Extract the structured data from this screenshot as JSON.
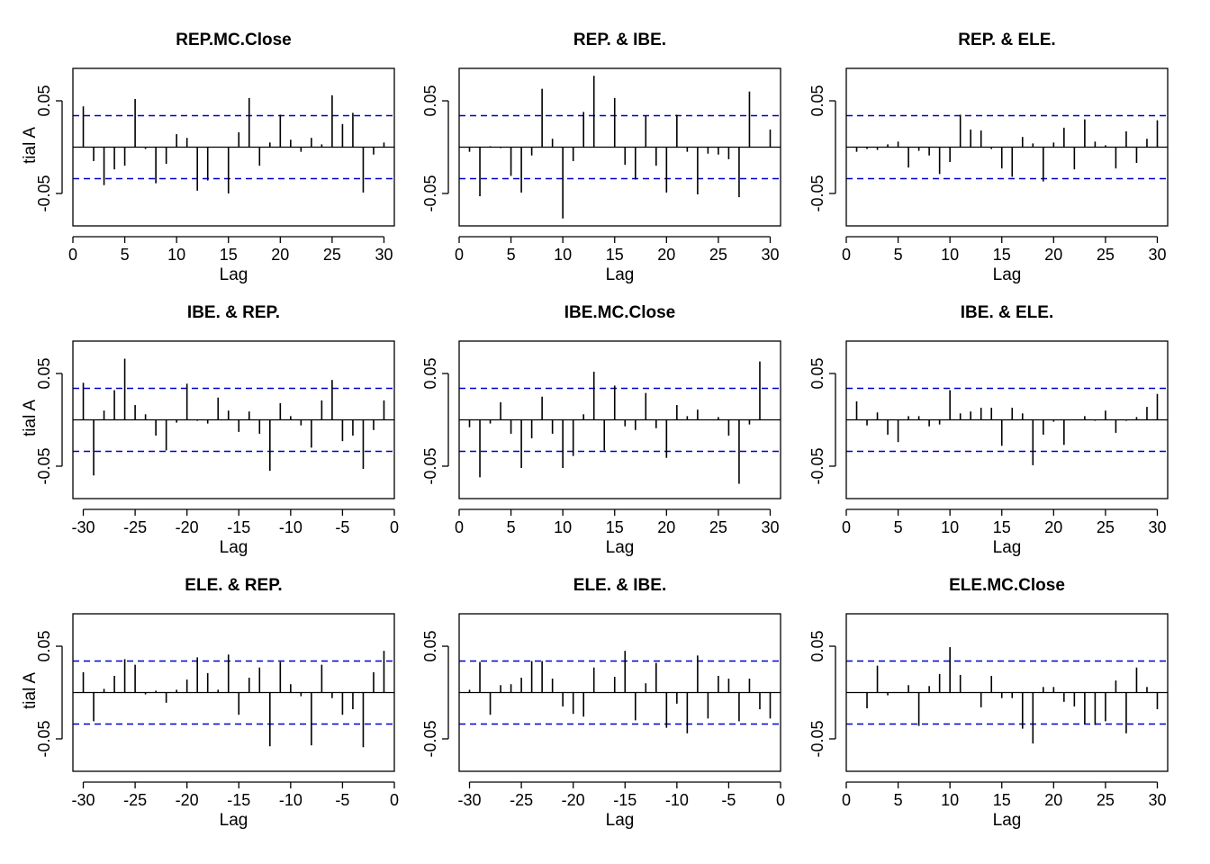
{
  "chart_data": [
    {
      "type": "bar",
      "title": "REP.MC.Close",
      "xlabel": "Lag",
      "ylabel": "Partial ACF",
      "xlim": [
        0,
        31
      ],
      "ylim": [
        -0.085,
        0.085
      ],
      "x_ticks": [
        0,
        5,
        10,
        15,
        20,
        25,
        30
      ],
      "y_ticks": [
        -0.05,
        0.05
      ],
      "y_tick_labels": [
        "-0.05",
        "0.05"
      ],
      "ci": 0.034,
      "bar_color": "#000000",
      "ci_color": "#0000CC",
      "x": [
        1,
        2,
        3,
        4,
        5,
        6,
        7,
        8,
        9,
        10,
        11,
        12,
        13,
        14,
        15,
        16,
        17,
        18,
        19,
        20,
        21,
        22,
        23,
        24,
        25,
        26,
        27,
        28,
        29,
        30
      ],
      "values": [
        0.044,
        -0.015,
        -0.041,
        -0.024,
        -0.02,
        0.052,
        -0.002,
        -0.039,
        -0.018,
        0.014,
        0.01,
        -0.047,
        -0.036,
        0.0,
        -0.05,
        0.016,
        0.053,
        -0.02,
        0.005,
        0.035,
        0.008,
        -0.005,
        0.01,
        0.003,
        0.056,
        0.025,
        0.037,
        -0.049,
        -0.008,
        0.005
      ]
    },
    {
      "type": "bar",
      "title": "REP. & IBE.",
      "xlabel": "Lag",
      "ylabel": "",
      "xlim": [
        0,
        31
      ],
      "ylim": [
        -0.085,
        0.085
      ],
      "x_ticks": [
        0,
        5,
        10,
        15,
        20,
        25,
        30
      ],
      "y_ticks": [
        -0.05,
        0.05
      ],
      "y_tick_labels": [
        "-0.05",
        "0.05"
      ],
      "ci": 0.034,
      "bar_color": "#000000",
      "ci_color": "#0000CC",
      "x": [
        1,
        2,
        3,
        4,
        5,
        6,
        7,
        8,
        9,
        10,
        11,
        12,
        13,
        14,
        15,
        16,
        17,
        18,
        19,
        20,
        21,
        22,
        23,
        24,
        25,
        26,
        27,
        28,
        29,
        30
      ],
      "values": [
        -0.005,
        -0.053,
        0.001,
        -0.001,
        -0.031,
        -0.049,
        -0.009,
        0.063,
        0.009,
        -0.077,
        -0.015,
        0.038,
        0.077,
        0.0,
        0.053,
        -0.019,
        -0.035,
        0.034,
        -0.02,
        -0.049,
        0.035,
        -0.005,
        -0.051,
        -0.007,
        -0.008,
        -0.013,
        -0.054,
        0.06,
        0.0,
        0.019
      ]
    },
    {
      "type": "bar",
      "title": "REP. & ELE.",
      "xlabel": "Lag",
      "ylabel": "",
      "xlim": [
        0,
        31
      ],
      "ylim": [
        -0.085,
        0.085
      ],
      "x_ticks": [
        0,
        5,
        10,
        15,
        20,
        25,
        30
      ],
      "y_ticks": [
        -0.05,
        0.05
      ],
      "y_tick_labels": [
        "-0.05",
        "0.05"
      ],
      "ci": 0.034,
      "bar_color": "#000000",
      "ci_color": "#0000CC",
      "x": [
        1,
        2,
        3,
        4,
        5,
        6,
        7,
        8,
        9,
        10,
        11,
        12,
        13,
        14,
        15,
        16,
        17,
        18,
        19,
        20,
        21,
        22,
        23,
        24,
        25,
        26,
        27,
        28,
        29,
        30
      ],
      "values": [
        -0.005,
        -0.002,
        -0.003,
        0.003,
        0.006,
        -0.022,
        -0.004,
        -0.009,
        -0.029,
        -0.016,
        0.035,
        0.019,
        0.018,
        -0.002,
        -0.023,
        -0.032,
        0.011,
        0.004,
        -0.037,
        0.005,
        0.021,
        -0.024,
        0.03,
        0.006,
        0.002,
        -0.023,
        0.017,
        -0.017,
        0.009,
        0.029
      ]
    },
    {
      "type": "bar",
      "title": "IBE. & REP.",
      "xlabel": "Lag",
      "ylabel": "Partial ACF",
      "xlim": [
        -31,
        0
      ],
      "ylim": [
        -0.085,
        0.085
      ],
      "x_ticks": [
        -30,
        -25,
        -20,
        -15,
        -10,
        -5,
        0
      ],
      "y_ticks": [
        -0.05,
        0.05
      ],
      "y_tick_labels": [
        "-0.05",
        "0.05"
      ],
      "ci": 0.034,
      "bar_color": "#000000",
      "ci_color": "#0000CC",
      "x": [
        -30,
        -29,
        -28,
        -27,
        -26,
        -25,
        -24,
        -23,
        -22,
        -21,
        -20,
        -19,
        -18,
        -17,
        -16,
        -15,
        -14,
        -13,
        -12,
        -11,
        -10,
        -9,
        -8,
        -7,
        -6,
        -5,
        -4,
        -3,
        -2,
        -1
      ],
      "values": [
        0.04,
        -0.06,
        0.01,
        0.032,
        0.066,
        0.016,
        0.006,
        -0.017,
        -0.033,
        -0.003,
        0.039,
        -0.001,
        -0.004,
        0.024,
        0.01,
        -0.013,
        0.009,
        -0.015,
        -0.055,
        0.018,
        0.004,
        -0.006,
        -0.03,
        0.021,
        0.043,
        -0.023,
        -0.017,
        -0.053,
        -0.011,
        0.021
      ]
    },
    {
      "type": "bar",
      "title": "IBE.MC.Close",
      "xlabel": "Lag",
      "ylabel": "",
      "xlim": [
        0,
        31
      ],
      "ylim": [
        -0.085,
        0.085
      ],
      "x_ticks": [
        0,
        5,
        10,
        15,
        20,
        25,
        30
      ],
      "y_ticks": [
        -0.05,
        0.05
      ],
      "y_tick_labels": [
        "-0.05",
        "0.05"
      ],
      "ci": 0.034,
      "bar_color": "#000000",
      "ci_color": "#0000CC",
      "x": [
        1,
        2,
        3,
        4,
        5,
        6,
        7,
        8,
        9,
        10,
        11,
        12,
        13,
        14,
        15,
        16,
        17,
        18,
        19,
        20,
        21,
        22,
        23,
        24,
        25,
        26,
        27,
        28,
        29,
        30
      ],
      "values": [
        -0.008,
        -0.062,
        -0.004,
        0.019,
        -0.015,
        -0.052,
        -0.02,
        0.025,
        -0.015,
        -0.052,
        -0.039,
        0.006,
        0.052,
        -0.033,
        0.037,
        -0.007,
        -0.011,
        0.029,
        -0.009,
        -0.041,
        0.016,
        0.004,
        0.011,
        0.0,
        0.003,
        -0.017,
        -0.069,
        -0.005,
        0.063,
        0.0
      ]
    },
    {
      "type": "bar",
      "title": "IBE. & ELE.",
      "xlabel": "Lag",
      "ylabel": "",
      "xlim": [
        0,
        31
      ],
      "ylim": [
        -0.085,
        0.085
      ],
      "x_ticks": [
        0,
        5,
        10,
        15,
        20,
        25,
        30
      ],
      "y_ticks": [
        -0.05,
        0.05
      ],
      "y_tick_labels": [
        "-0.05",
        "0.05"
      ],
      "ci": 0.034,
      "bar_color": "#000000",
      "ci_color": "#0000CC",
      "x": [
        1,
        2,
        3,
        4,
        5,
        6,
        7,
        8,
        9,
        10,
        11,
        12,
        13,
        14,
        15,
        16,
        17,
        18,
        19,
        20,
        21,
        22,
        23,
        24,
        25,
        26,
        27,
        28,
        29,
        30
      ],
      "values": [
        0.02,
        -0.006,
        0.008,
        -0.016,
        -0.024,
        0.004,
        0.004,
        -0.007,
        -0.005,
        0.032,
        0.007,
        0.009,
        0.013,
        0.013,
        -0.028,
        0.013,
        0.007,
        -0.049,
        -0.016,
        -0.002,
        -0.027,
        0.0,
        0.004,
        -0.001,
        0.01,
        -0.014,
        -0.001,
        0.003,
        0.014,
        0.028
      ]
    },
    {
      "type": "bar",
      "title": "ELE. & REP.",
      "xlabel": "Lag",
      "ylabel": "Partial ACF",
      "xlim": [
        -31,
        0
      ],
      "ylim": [
        -0.085,
        0.085
      ],
      "x_ticks": [
        -30,
        -25,
        -20,
        -15,
        -10,
        -5,
        0
      ],
      "y_ticks": [
        -0.05,
        0.05
      ],
      "y_tick_labels": [
        "-0.05",
        "0.05"
      ],
      "ci": 0.034,
      "bar_color": "#000000",
      "ci_color": "#0000CC",
      "x": [
        -30,
        -29,
        -28,
        -27,
        -26,
        -25,
        -24,
        -23,
        -22,
        -21,
        -20,
        -19,
        -18,
        -17,
        -16,
        -15,
        -14,
        -13,
        -12,
        -11,
        -10,
        -9,
        -8,
        -7,
        -6,
        -5,
        -4,
        -3,
        -2,
        -1
      ],
      "values": [
        0.022,
        -0.031,
        0.004,
        0.018,
        0.036,
        0.03,
        -0.002,
        0.002,
        -0.011,
        0.003,
        0.014,
        0.038,
        0.021,
        0.003,
        0.041,
        -0.024,
        0.016,
        0.027,
        -0.058,
        0.033,
        0.009,
        -0.004,
        -0.057,
        0.03,
        -0.006,
        -0.024,
        -0.018,
        -0.059,
        0.022,
        0.045
      ]
    },
    {
      "type": "bar",
      "title": "ELE. & IBE.",
      "xlabel": "Lag",
      "ylabel": "",
      "xlim": [
        -31,
        0
      ],
      "ylim": [
        -0.085,
        0.085
      ],
      "x_ticks": [
        -30,
        -25,
        -20,
        -15,
        -10,
        -5,
        0
      ],
      "y_ticks": [
        -0.05,
        0.05
      ],
      "y_tick_labels": [
        "-0.05",
        "0.05"
      ],
      "ci": 0.034,
      "bar_color": "#000000",
      "ci_color": "#0000CC",
      "x": [
        -30,
        -29,
        -28,
        -27,
        -26,
        -25,
        -24,
        -23,
        -22,
        -21,
        -20,
        -19,
        -18,
        -17,
        -16,
        -15,
        -14,
        -13,
        -12,
        -11,
        -10,
        -9,
        -8,
        -7,
        -6,
        -5,
        -4,
        -3,
        -2,
        -1
      ],
      "values": [
        0.003,
        0.033,
        -0.024,
        0.008,
        0.009,
        0.016,
        0.034,
        0.034,
        0.015,
        -0.015,
        -0.023,
        -0.026,
        0.027,
        0.0,
        0.017,
        0.045,
        -0.03,
        0.01,
        0.032,
        -0.038,
        -0.012,
        -0.044,
        0.04,
        -0.028,
        0.018,
        0.015,
        -0.031,
        0.015,
        -0.018,
        -0.028
      ]
    },
    {
      "type": "bar",
      "title": "ELE.MC.Close",
      "xlabel": "Lag",
      "ylabel": "",
      "xlim": [
        0,
        31
      ],
      "ylim": [
        -0.085,
        0.085
      ],
      "x_ticks": [
        0,
        5,
        10,
        15,
        20,
        25,
        30
      ],
      "y_ticks": [
        -0.05,
        0.05
      ],
      "y_tick_labels": [
        "-0.05",
        "0.05"
      ],
      "ci": 0.034,
      "bar_color": "#000000",
      "ci_color": "#0000CC",
      "x": [
        1,
        2,
        3,
        4,
        5,
        6,
        7,
        8,
        9,
        10,
        11,
        12,
        13,
        14,
        15,
        16,
        17,
        18,
        19,
        20,
        21,
        22,
        23,
        24,
        25,
        26,
        27,
        28,
        29,
        30
      ],
      "values": [
        0.0,
        -0.017,
        0.029,
        -0.003,
        0.0,
        0.008,
        -0.036,
        0.007,
        0.02,
        0.049,
        0.019,
        0.0,
        -0.016,
        0.018,
        -0.006,
        -0.006,
        -0.039,
        -0.055,
        0.006,
        0.006,
        -0.01,
        -0.015,
        -0.034,
        -0.035,
        -0.031,
        0.013,
        -0.044,
        0.027,
        0.006,
        -0.018
      ]
    }
  ]
}
